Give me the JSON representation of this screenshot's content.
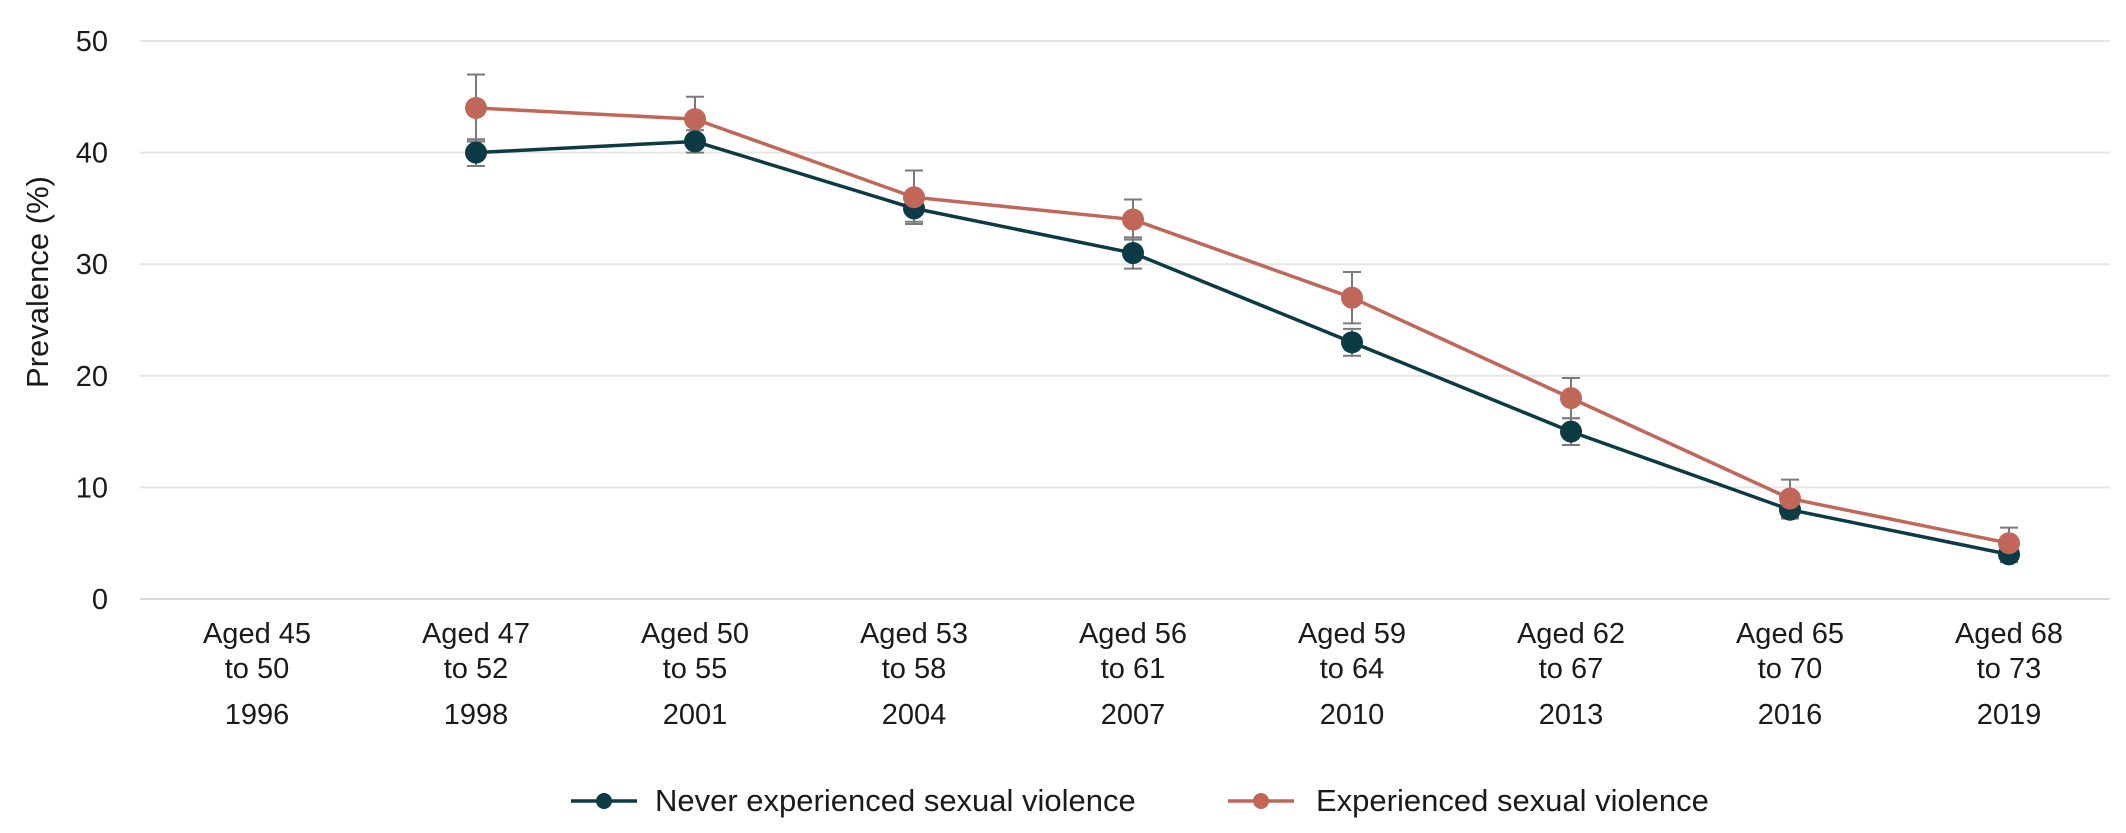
{
  "chart_data": {
    "type": "line",
    "ylabel": "Prevalence (%)",
    "xlabel": "",
    "ylim": [
      0,
      50
    ],
    "yticks": [
      0,
      10,
      20,
      30,
      40,
      50
    ],
    "grid": true,
    "legend_position": "bottom-center",
    "categories": [
      {
        "line1": "Aged 45",
        "line2": "to 50",
        "year": "1996"
      },
      {
        "line1": "Aged 47",
        "line2": "to 52",
        "year": "1998"
      },
      {
        "line1": "Aged 50",
        "line2": "to 55",
        "year": "2001"
      },
      {
        "line1": "Aged 53",
        "line2": "to 58",
        "year": "2004"
      },
      {
        "line1": "Aged 56",
        "line2": "to 61",
        "year": "2007"
      },
      {
        "line1": "Aged 59",
        "line2": "to 64",
        "year": "2010"
      },
      {
        "line1": "Aged 62",
        "line2": "to 67",
        "year": "2013"
      },
      {
        "line1": "Aged 65",
        "line2": "to 70",
        "year": "2016"
      },
      {
        "line1": "Aged 68",
        "line2": "to 73",
        "year": "2019"
      }
    ],
    "series": [
      {
        "name": "Never experienced sexual violence",
        "color": "#0d3b45",
        "values": [
          null,
          40,
          41,
          35,
          31,
          23,
          15,
          8,
          4
        ],
        "error_low": [
          null,
          38.8,
          40.0,
          33.8,
          29.6,
          21.8,
          13.8,
          7.2,
          3.3
        ],
        "error_high": [
          null,
          41.2,
          42.0,
          36.2,
          32.4,
          24.2,
          16.2,
          8.8,
          4.7
        ]
      },
      {
        "name": "Experienced sexual violence",
        "color": "#c0675a",
        "values": [
          null,
          44,
          43,
          36,
          34,
          27,
          18,
          9,
          5
        ],
        "error_low": [
          null,
          41,
          41,
          33.6,
          32.2,
          24.7,
          16.2,
          7.3,
          3.6
        ],
        "error_high": [
          null,
          47,
          45,
          38.4,
          35.8,
          29.3,
          19.8,
          10.7,
          6.4
        ]
      }
    ]
  }
}
